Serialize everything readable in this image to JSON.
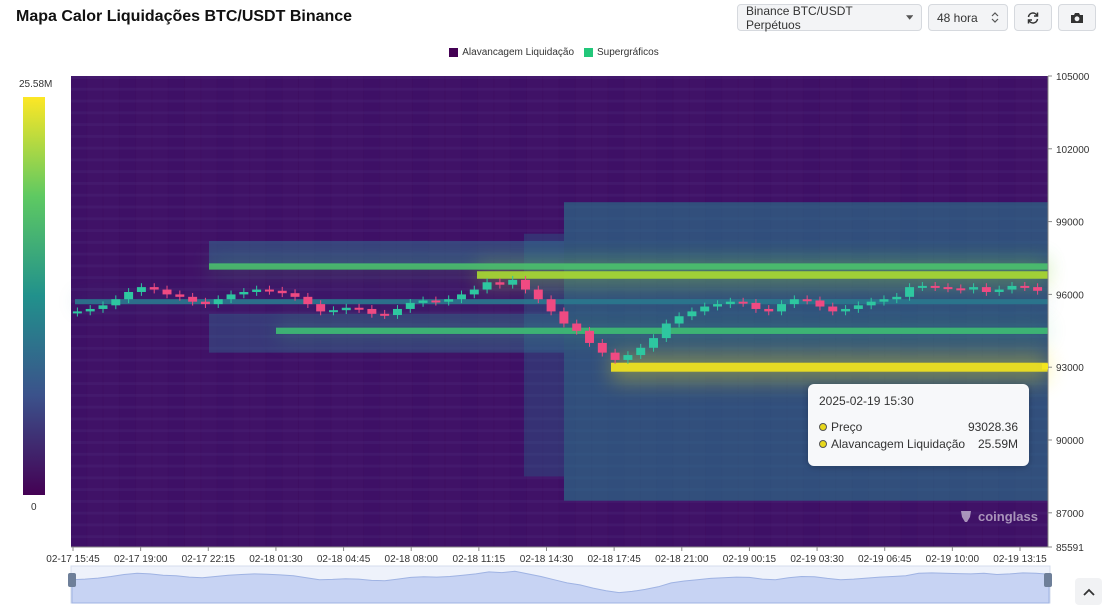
{
  "title": "Mapa Calor Liquidações BTC/USDT Binance",
  "toolbar": {
    "exchange_label": "Binance BTC/USDT Perpétuos",
    "range_label": "48 hora",
    "refresh_icon": "refresh-icon",
    "camera_icon": "camera-icon"
  },
  "legend": [
    {
      "label": "Alavancagem Liquidação",
      "color": "#440154"
    },
    {
      "label": "Supergráficos",
      "color": "#22c77a"
    }
  ],
  "colorbar": {
    "max_label": "25.58M",
    "min_label": "0"
  },
  "tooltip": {
    "time": "2025-02-19 15:30",
    "price_label": "Preço",
    "price_value": "93028.36",
    "liq_label": "Alavancagem Liquidação",
    "liq_value": "25.59M"
  },
  "watermark": "coinglass",
  "chart_data": {
    "type": "heatmap",
    "title": "Mapa Calor Liquidações BTC/USDT Binance",
    "y_ticks": [
      105000,
      102000,
      99000,
      96000,
      93000,
      90000,
      87000,
      85591
    ],
    "y_tick_labels": [
      "105000",
      "102000",
      "99000",
      "96000",
      "93000",
      "90000",
      "87000",
      "85591"
    ],
    "ylim": [
      85591,
      105000
    ],
    "x_tick_labels": [
      "02-17 15:45",
      "02-17 19:00",
      "02-17 22:15",
      "02-18 01:30",
      "02-18 04:45",
      "02-18 08:00",
      "02-18 11:15",
      "02-18 14:30",
      "02-18 17:45",
      "02-18 21:00",
      "02-19 00:15",
      "02-19 03:30",
      "02-19 06:45",
      "02-19 10:00",
      "02-19 13:15"
    ],
    "color_scale": {
      "min": 0,
      "max": 25580000,
      "min_label": "0",
      "max_label": "25.58M"
    },
    "price_series": [
      95300,
      95400,
      95550,
      95800,
      96100,
      96300,
      96200,
      96000,
      95900,
      95700,
      95600,
      95800,
      96000,
      96100,
      96200,
      96150,
      96050,
      95900,
      95600,
      95300,
      95350,
      95450,
      95400,
      95200,
      95150,
      95400,
      95650,
      95750,
      95700,
      95800,
      96000,
      96200,
      96500,
      96400,
      96600,
      96200,
      95800,
      95300,
      94800,
      94500,
      94000,
      93600,
      93300,
      93500,
      93800,
      94200,
      94800,
      95100,
      95300,
      95500,
      95600,
      95700,
      95650,
      95400,
      95300,
      95600,
      95800,
      95750,
      95500,
      95300,
      95400,
      95550,
      95700,
      95800,
      95900,
      96300,
      96350,
      96300,
      96250,
      96200,
      96300,
      96100,
      96200,
      96350,
      96300,
      96150
    ],
    "bands": [
      {
        "price": 93000,
        "start": "02-18 17:45",
        "intensity": 1.0
      },
      {
        "price": 96800,
        "start": "02-18 11:15",
        "intensity": 0.75
      },
      {
        "price": 97150,
        "start": "02-17 22:15",
        "intensity": 0.55
      },
      {
        "price": 94500,
        "start": "02-18 01:30",
        "intensity": 0.55
      },
      {
        "price": 95700,
        "start": "02-17 15:45",
        "intensity": 0.35
      }
    ],
    "tooltip": {
      "time": "2025-02-19 15:30",
      "price": 93028.36,
      "liquidation_leverage": "25.59M"
    }
  }
}
